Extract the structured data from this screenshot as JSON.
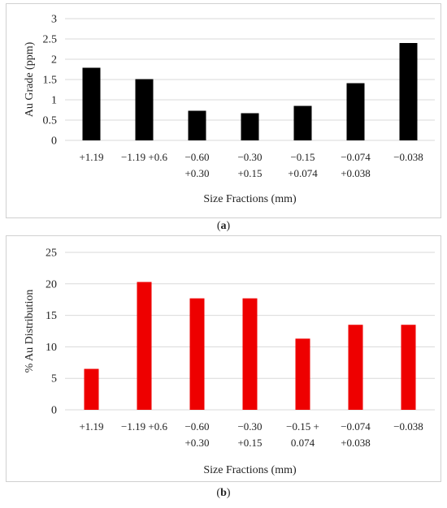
{
  "chart_data": [
    {
      "type": "bar",
      "panel_label": "a",
      "categories": [
        [
          "+1.19"
        ],
        [
          "−1.19 +0.6"
        ],
        [
          "−0.60",
          "+0.30"
        ],
        [
          "−0.30",
          "+0.15"
        ],
        [
          "−0.15",
          "+0.074"
        ],
        [
          "−0.074",
          "+0.038"
        ],
        [
          "−0.038"
        ]
      ],
      "values": [
        1.79,
        1.51,
        0.73,
        0.67,
        0.85,
        1.41,
        2.4
      ],
      "y_ticks": [
        "0",
        "0.5",
        "1",
        "1.5",
        "2",
        "2.5",
        "3"
      ],
      "ylim": [
        0,
        3
      ],
      "xlabel": "Size Fractions (mm)",
      "ylabel": "Au Grade (ppm)",
      "grid": true,
      "color": "#000000"
    },
    {
      "type": "bar",
      "panel_label": "b",
      "categories": [
        [
          "+1.19"
        ],
        [
          "−1.19 +0.6"
        ],
        [
          "−0.60",
          "+0.30"
        ],
        [
          "−0.30",
          "+0.15"
        ],
        [
          "−0.15 +",
          "0.074"
        ],
        [
          "−0.074",
          "+0.038"
        ],
        [
          "−0.038"
        ]
      ],
      "values": [
        6.5,
        20.3,
        17.7,
        17.7,
        11.3,
        13.5,
        13.5
      ],
      "y_ticks": [
        "0",
        "5",
        "10",
        "15",
        "20",
        "25"
      ],
      "ylim": [
        0,
        25
      ],
      "xlabel": "Size Fractions (mm)",
      "ylabel": "% Au Distribution",
      "grid": true,
      "color": "#ee0000"
    }
  ],
  "captions": {
    "a": "a",
    "b": "b"
  }
}
